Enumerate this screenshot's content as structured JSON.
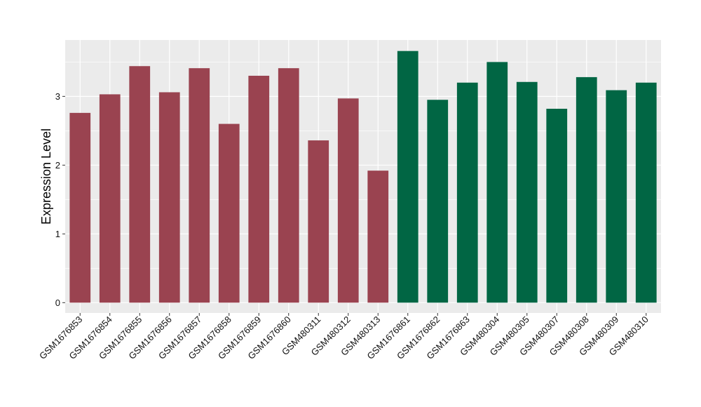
{
  "chart_data": {
    "type": "bar",
    "title": "",
    "xlabel": "",
    "ylabel": "Expression Level",
    "ylim": [
      -0.15,
      3.82
    ],
    "yticks": [
      0,
      1,
      2,
      3
    ],
    "grid": true,
    "legend": "none",
    "categories": [
      "GSM1676853",
      "GSM1676854",
      "GSM1676855",
      "GSM1676856",
      "GSM1676857",
      "GSM1676858",
      "GSM1676859",
      "GSM1676860",
      "GSM480311",
      "GSM480312",
      "GSM480313",
      "GSM1676861",
      "GSM1676862",
      "GSM1676863",
      "GSM480304",
      "GSM480305",
      "GSM480307",
      "GSM480308",
      "GSM480309",
      "GSM480310"
    ],
    "values": [
      2.76,
      3.03,
      3.44,
      3.06,
      3.41,
      2.6,
      3.3,
      3.41,
      2.36,
      2.97,
      1.92,
      3.66,
      2.95,
      3.2,
      3.5,
      3.21,
      2.82,
      3.28,
      3.09,
      3.2
    ],
    "groups": [
      1,
      1,
      1,
      1,
      1,
      1,
      1,
      1,
      1,
      1,
      1,
      2,
      2,
      2,
      2,
      2,
      2,
      2,
      2,
      2
    ],
    "colors": {
      "group1": "#9a4350",
      "group2": "#016644",
      "panel": "#ebebeb",
      "grid": "#ffffff"
    }
  }
}
